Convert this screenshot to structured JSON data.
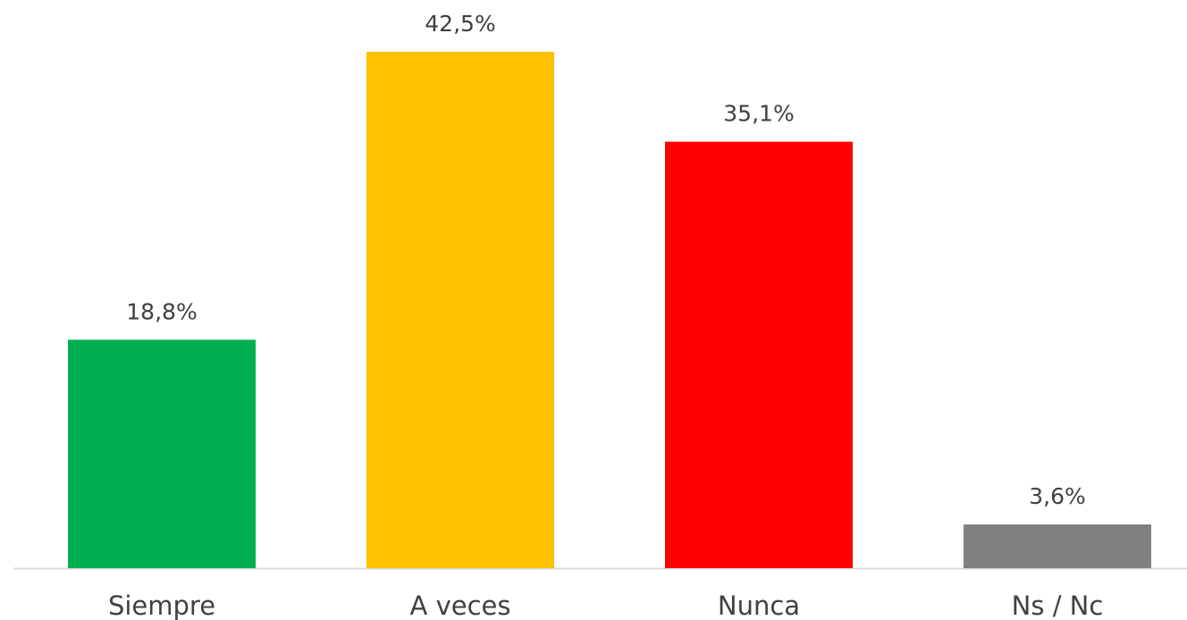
{
  "chart_data": {
    "type": "bar",
    "categories": [
      "Siempre",
      "A veces",
      "Nunca",
      "Ns / Nc"
    ],
    "values": [
      18.8,
      42.5,
      35.1,
      3.6
    ],
    "value_labels": [
      "18,8%",
      "42,5%",
      "35,1%",
      "3,6%"
    ],
    "colors": [
      "#00b050",
      "#ffc000",
      "#ff0000",
      "#808080"
    ]
  }
}
